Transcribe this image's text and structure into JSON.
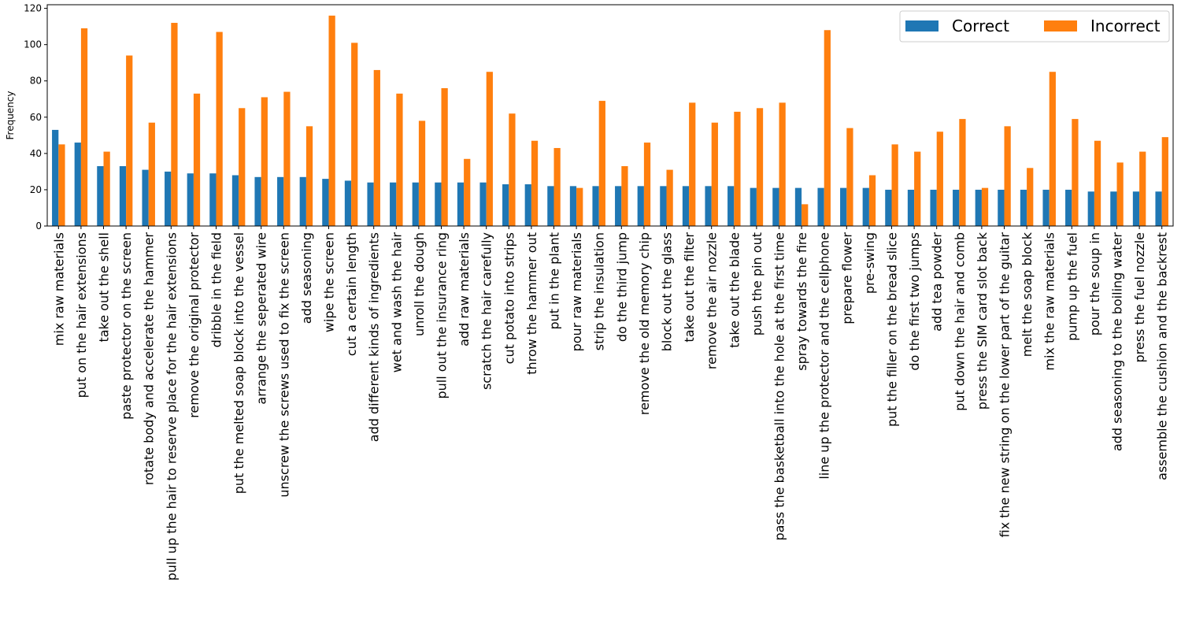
{
  "chart_data": {
    "type": "bar",
    "title": "",
    "xlabel": "",
    "ylabel": "Frequency",
    "ylim": [
      0,
      122
    ],
    "yticks": [
      0,
      20,
      40,
      60,
      80,
      100,
      120
    ],
    "grid": false,
    "legend": {
      "placement": "top-right",
      "columns": 2
    },
    "categories": [
      "mix raw materials",
      "put on the hair extensions",
      "take out the shell",
      "paste protector on the screen",
      "rotate body and accelerate the hammer",
      "pull up the hair to reserve place for the hair extensions",
      "remove the original protector",
      "dribble in the field",
      "put the melted soap block into the vessel",
      "arrange the seperated wire",
      "unscrew the screws used to fix the screen",
      "add seasoning",
      "wipe the screen",
      "cut a certain length",
      "add different kinds of ingredients",
      "wet and wash the hair",
      "unroll the dough",
      "pull out the insurance ring",
      "add raw materials",
      "scratch the hair carefully",
      "cut potato into strips",
      "throw the hammer out",
      "put in the plant",
      "pour raw materials",
      "strip the insulation",
      "do the third jump",
      "remove the old memory chip",
      "block out the glass",
      "take out the filter",
      "remove the air nozzle",
      "take out the blade",
      "push the pin out",
      "pass the basketball into the hole at the first time",
      "spray towards the fire",
      "line up the protector and the cellphone",
      "prepare flower",
      "pre-swing",
      "put the filler on the bread slice",
      "do the first two jumps",
      "add tea powder",
      "put down the hair and comb",
      "press the SIM card slot back",
      "fix the new string on the lower part of the guitar",
      "melt the soap block",
      "mix the raw materials",
      "pump up the fuel",
      "pour the soup in",
      "add seasoning to the boiling water",
      "press the fuel nozzle",
      "assemble the cushion and the backrest"
    ],
    "series": [
      {
        "name": "Correct",
        "color": "#1f77b4",
        "values": [
          53,
          46,
          33,
          33,
          31,
          30,
          29,
          29,
          28,
          27,
          27,
          27,
          26,
          25,
          24,
          24,
          24,
          24,
          24,
          24,
          23,
          23,
          22,
          22,
          22,
          22,
          22,
          22,
          22,
          22,
          22,
          21,
          21,
          21,
          21,
          21,
          21,
          20,
          20,
          20,
          20,
          20,
          20,
          20,
          20,
          20,
          19,
          19,
          19,
          19
        ]
      },
      {
        "name": "Incorrect",
        "color": "#ff7f0e",
        "values": [
          45,
          109,
          41,
          94,
          57,
          112,
          73,
          107,
          65,
          71,
          74,
          55,
          116,
          101,
          86,
          73,
          58,
          76,
          37,
          85,
          62,
          47,
          43,
          21,
          69,
          33,
          46,
          31,
          68,
          57,
          63,
          65,
          68,
          12,
          108,
          54,
          28,
          45,
          41,
          52,
          59,
          21,
          55,
          32,
          85,
          59,
          47,
          35,
          41,
          49
        ]
      }
    ]
  }
}
